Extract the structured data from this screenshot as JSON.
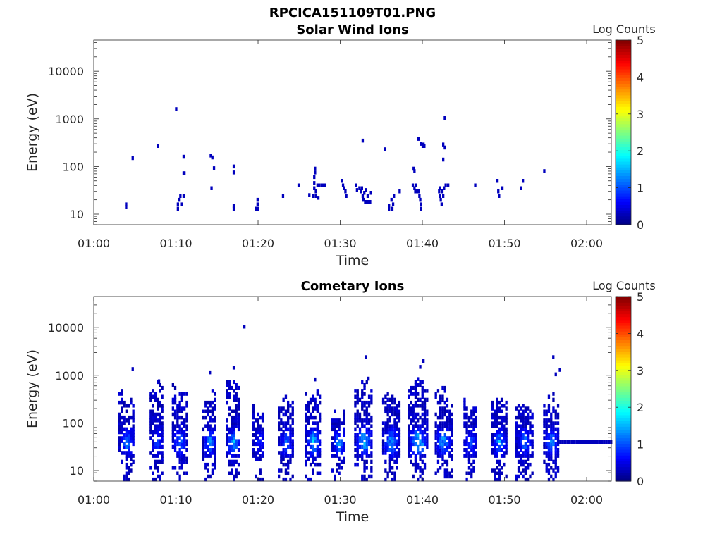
{
  "figure_title": "RPCICA151109T01.PNG",
  "chart_data": [
    {
      "type": "heatmap",
      "title": "Solar Wind Ions",
      "xlabel": "Time",
      "ylabel": "Energy (eV)",
      "xticks": [
        "01:00",
        "01:10",
        "01:20",
        "01:30",
        "01:40",
        "01:50",
        "02:00"
      ],
      "xlim_minutes": [
        0,
        63
      ],
      "yscale": "log",
      "yticks": [
        "10",
        "100",
        "1000",
        "10000"
      ],
      "ylim": [
        6,
        45000
      ],
      "colorbar": {
        "label": "Log Counts",
        "ticks": [
          "0",
          "1",
          "2",
          "3",
          "4",
          "5"
        ],
        "range": [
          0,
          5
        ],
        "colormap": "jet"
      },
      "cells": [
        [
          3.8,
          14,
          0.3
        ],
        [
          3.8,
          16,
          0.3
        ],
        [
          4.6,
          150,
          0.3
        ],
        [
          7.7,
          270,
          0.3
        ],
        [
          9.9,
          1600,
          0.3
        ],
        [
          10.1,
          13,
          0.3
        ],
        [
          10.1,
          16,
          0.3
        ],
        [
          10.3,
          20,
          0.3
        ],
        [
          10.4,
          24,
          0.3
        ],
        [
          10.6,
          16,
          0.3
        ],
        [
          10.8,
          160,
          0.3
        ],
        [
          10.8,
          72,
          0.3
        ],
        [
          10.9,
          72,
          0.3
        ],
        [
          10.8,
          24,
          0.3
        ],
        [
          14.1,
          170,
          0.3
        ],
        [
          14.3,
          155,
          0.3
        ],
        [
          14.2,
          35,
          0.3
        ],
        [
          14.5,
          92,
          0.3
        ],
        [
          16.9,
          100,
          0.3
        ],
        [
          16.9,
          75,
          0.3
        ],
        [
          16.9,
          13,
          0.3
        ],
        [
          16.9,
          15,
          0.3
        ],
        [
          19.8,
          13,
          0.3
        ],
        [
          19.8,
          16,
          0.3
        ],
        [
          19.8,
          20,
          0.3
        ],
        [
          19.6,
          13,
          0.3
        ],
        [
          22.9,
          24,
          0.3
        ],
        [
          24.8,
          40,
          0.3
        ],
        [
          26.1,
          25,
          0.3
        ],
        [
          26.6,
          24,
          0.3
        ],
        [
          26.7,
          35,
          0.3
        ],
        [
          26.7,
          45,
          0.3
        ],
        [
          26.7,
          60,
          0.3
        ],
        [
          26.8,
          75,
          0.3
        ],
        [
          26.8,
          90,
          0.3
        ],
        [
          26.9,
          24,
          0.3
        ],
        [
          26.9,
          30,
          0.3
        ],
        [
          27.1,
          40,
          0.3
        ],
        [
          27.3,
          40,
          0.3
        ],
        [
          27.6,
          40,
          0.3
        ],
        [
          27.8,
          40,
          0.3
        ],
        [
          28.0,
          40,
          0.3
        ],
        [
          27.2,
          22,
          0.3
        ],
        [
          30.1,
          50,
          0.3
        ],
        [
          30.2,
          40,
          0.3
        ],
        [
          30.3,
          35,
          0.3
        ],
        [
          30.5,
          30,
          0.3
        ],
        [
          30.6,
          24,
          0.3
        ],
        [
          31.8,
          40,
          0.3
        ],
        [
          31.9,
          32,
          0.3
        ],
        [
          32.2,
          35,
          0.3
        ],
        [
          32.4,
          30,
          0.3
        ],
        [
          32.6,
          24,
          0.3
        ],
        [
          32.7,
          20,
          0.3
        ],
        [
          32.9,
          18,
          0.3
        ],
        [
          33.1,
          18,
          0.3
        ],
        [
          33.3,
          18,
          0.3
        ],
        [
          33.5,
          18,
          0.3
        ],
        [
          32.5,
          35,
          0.3
        ],
        [
          32.8,
          28,
          0.3
        ],
        [
          33.2,
          24,
          0.3
        ],
        [
          33.6,
          28,
          0.3
        ],
        [
          33.0,
          32,
          0.3
        ],
        [
          32.6,
          350,
          0.3
        ],
        [
          35.3,
          230,
          0.3
        ],
        [
          35.8,
          15,
          0.3
        ],
        [
          35.8,
          13,
          0.3
        ],
        [
          36.2,
          13,
          0.3
        ],
        [
          36.3,
          16,
          0.3
        ],
        [
          36.1,
          20,
          0.3
        ],
        [
          36.4,
          24,
          0.3
        ],
        [
          37.1,
          30,
          0.3
        ],
        [
          38.7,
          40,
          0.3
        ],
        [
          38.9,
          35,
          0.3
        ],
        [
          39.0,
          30,
          0.3
        ],
        [
          39.1,
          40,
          0.3
        ],
        [
          39.2,
          30,
          0.3
        ],
        [
          38.8,
          90,
          0.3
        ],
        [
          38.9,
          80,
          0.3
        ],
        [
          39.5,
          24,
          0.3
        ],
        [
          39.6,
          20,
          0.3
        ],
        [
          39.7,
          16,
          0.3
        ],
        [
          39.7,
          13,
          0.3
        ],
        [
          39.4,
          30,
          0.3
        ],
        [
          39.4,
          380,
          0.3
        ],
        [
          39.7,
          300,
          0.3
        ],
        [
          39.9,
          270,
          0.3
        ],
        [
          40.0,
          290,
          0.3
        ],
        [
          40.1,
          270,
          0.3
        ],
        [
          41.9,
          30,
          0.3
        ],
        [
          42.0,
          24,
          0.3
        ],
        [
          42.1,
          20,
          0.3
        ],
        [
          42.0,
          35,
          0.3
        ],
        [
          42.2,
          16,
          0.3
        ],
        [
          42.3,
          30,
          0.3
        ],
        [
          42.4,
          24,
          0.3
        ],
        [
          42.5,
          35,
          0.3
        ],
        [
          42.7,
          40,
          0.3
        ],
        [
          43.0,
          40,
          0.3
        ],
        [
          42.6,
          1050,
          0.3
        ],
        [
          42.4,
          290,
          0.3
        ],
        [
          42.6,
          250,
          0.3
        ],
        [
          42.4,
          140,
          0.3
        ],
        [
          46.3,
          40,
          0.3
        ],
        [
          49.0,
          50,
          0.3
        ],
        [
          49.1,
          30,
          0.3
        ],
        [
          49.2,
          24,
          0.3
        ],
        [
          49.6,
          35,
          0.3
        ],
        [
          51.9,
          35,
          0.3
        ],
        [
          52.1,
          50,
          0.3
        ],
        [
          54.7,
          80,
          0.3
        ]
      ]
    },
    {
      "type": "heatmap",
      "title": "Cometary Ions",
      "xlabel": "Time",
      "ylabel": "Energy (eV)",
      "xticks": [
        "01:00",
        "01:10",
        "01:20",
        "01:30",
        "01:40",
        "01:50",
        "02:00"
      ],
      "xlim_minutes": [
        0,
        63
      ],
      "yscale": "log",
      "yticks": [
        "10",
        "100",
        "1000",
        "10000"
      ],
      "ylim": [
        6,
        45000
      ],
      "colorbar": {
        "label": "Log Counts",
        "ticks": [
          "0",
          "1",
          "2",
          "3",
          "4",
          "5"
        ],
        "range": [
          0,
          5
        ],
        "colormap": "jet"
      },
      "bursts": [
        {
          "t": 3.9,
          "w": 1.8,
          "top": 350,
          "peak": 1.0
        },
        {
          "t": 7.6,
          "w": 1.6,
          "top": 600,
          "peak": 0.6
        },
        {
          "t": 10.4,
          "w": 1.8,
          "top": 550,
          "peak": 1.0
        },
        {
          "t": 14.0,
          "w": 1.6,
          "top": 400,
          "peak": 1.1
        },
        {
          "t": 16.9,
          "w": 1.6,
          "top": 650,
          "peak": 1.4
        },
        {
          "t": 20.0,
          "w": 1.4,
          "top": 200,
          "peak": 0.5
        },
        {
          "t": 23.3,
          "w": 1.8,
          "top": 300,
          "peak": 0.9
        },
        {
          "t": 26.6,
          "w": 1.8,
          "top": 450,
          "peak": 1.6
        },
        {
          "t": 29.7,
          "w": 1.6,
          "top": 150,
          "peak": 1.2
        },
        {
          "t": 32.8,
          "w": 2.2,
          "top": 700,
          "peak": 1.5
        },
        {
          "t": 36.1,
          "w": 2.0,
          "top": 400,
          "peak": 1.4
        },
        {
          "t": 39.4,
          "w": 2.4,
          "top": 650,
          "peak": 1.7
        },
        {
          "t": 42.5,
          "w": 2.0,
          "top": 450,
          "peak": 1.4
        },
        {
          "t": 45.8,
          "w": 1.6,
          "top": 250,
          "peak": 0.8
        },
        {
          "t": 49.3,
          "w": 1.8,
          "top": 300,
          "peak": 1.2
        },
        {
          "t": 52.3,
          "w": 2.0,
          "top": 200,
          "peak": 1.0
        },
        {
          "t": 55.6,
          "w": 1.8,
          "top": 300,
          "peak": 1.2
        }
      ],
      "band": {
        "from": 56.4,
        "to": 63.0,
        "energy": 40,
        "level": 0.3
      },
      "isolated": [
        [
          18.2,
          10500,
          0.3
        ],
        [
          4.6,
          1350,
          0.3
        ],
        [
          14.0,
          1150,
          0.3
        ],
        [
          16.9,
          1450,
          0.3
        ],
        [
          33.0,
          2400,
          0.3
        ],
        [
          40.0,
          2000,
          0.3
        ],
        [
          55.8,
          2400,
          0.3
        ],
        [
          56.6,
          1300,
          0.3
        ],
        [
          56.1,
          1050,
          0.3
        ],
        [
          7.8,
          750,
          0.3
        ],
        [
          26.8,
          820,
          0.3
        ],
        [
          33.3,
          850,
          0.3
        ],
        [
          39.6,
          1500,
          0.3
        ]
      ]
    }
  ]
}
